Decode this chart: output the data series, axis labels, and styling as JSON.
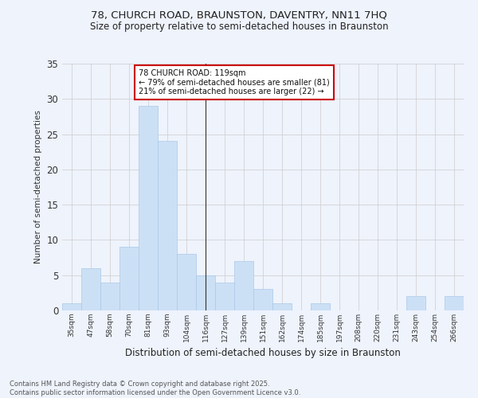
{
  "title1": "78, CHURCH ROAD, BRAUNSTON, DAVENTRY, NN11 7HQ",
  "title2": "Size of property relative to semi-detached houses in Braunston",
  "xlabel": "Distribution of semi-detached houses by size in Braunston",
  "ylabel": "Number of semi-detached properties",
  "footnote": "Contains HM Land Registry data © Crown copyright and database right 2025.\nContains public sector information licensed under the Open Government Licence v3.0.",
  "annotation_line1": "78 CHURCH ROAD: 119sqm",
  "annotation_line2": "← 79% of semi-detached houses are smaller (81)",
  "annotation_line3": "21% of semi-detached houses are larger (22) →",
  "bar_labels": [
    "35sqm",
    "47sqm",
    "58sqm",
    "70sqm",
    "81sqm",
    "93sqm",
    "104sqm",
    "116sqm",
    "127sqm",
    "139sqm",
    "151sqm",
    "162sqm",
    "174sqm",
    "185sqm",
    "197sqm",
    "208sqm",
    "220sqm",
    "231sqm",
    "243sqm",
    "254sqm",
    "266sqm"
  ],
  "bar_values": [
    1,
    6,
    4,
    9,
    29,
    24,
    8,
    5,
    4,
    7,
    3,
    1,
    0,
    1,
    0,
    0,
    0,
    0,
    2,
    0,
    2
  ],
  "highlight_index": 7,
  "bar_color": "#cce0f5",
  "bar_edge_color": "#aac8e8",
  "highlight_line_color": "#333333",
  "annotation_box_color": "#ffffff",
  "annotation_border_color": "#cc0000",
  "background_color": "#eef3fc",
  "grid_color": "#cccccc",
  "ylim": [
    0,
    35
  ],
  "yticks": [
    0,
    5,
    10,
    15,
    20,
    25,
    30,
    35
  ]
}
